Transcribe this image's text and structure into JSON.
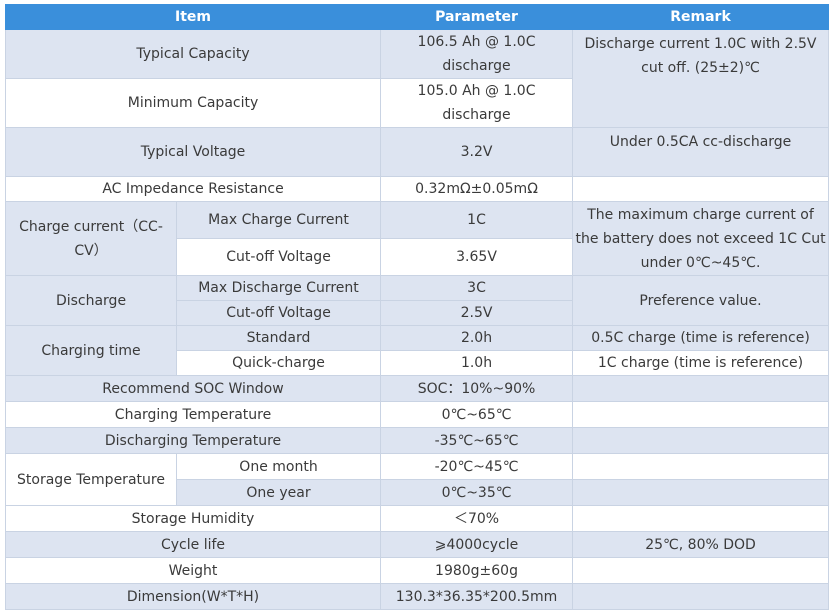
{
  "header": {
    "item": "Item",
    "parameter": "Parameter",
    "remark": "Remark"
  },
  "rows": {
    "typical_capacity": {
      "item": "Typical Capacity",
      "value": "106.5 Ah @ 1.0C discharge"
    },
    "capacity_remark": "Discharge current 1.0C with 2.5V cut off. (25±2)℃",
    "minimum_capacity": {
      "item": "Minimum Capacity",
      "value": "105.0 Ah @ 1.0C discharge"
    },
    "typical_voltage": {
      "item": "Typical Voltage",
      "value": "3.2V",
      "remark": "Under 0.5CA cc-discharge"
    },
    "ac_impedance": {
      "item": "AC Impedance Resistance",
      "value": "0.32mΩ±0.05mΩ",
      "remark": ""
    },
    "charge_current": {
      "item": "Charge current（CC-CV）",
      "max_label": "Max Charge Current",
      "max_value": "1C",
      "cutoff_label": "Cut-off Voltage",
      "cutoff_value": "3.65V",
      "remark": "The maximum charge current of the battery does not exceed 1C Cut under 0℃~45℃."
    },
    "discharge": {
      "item": "Discharge",
      "max_label": "Max Discharge Current",
      "max_value": "3C",
      "cutoff_label": "Cut-off Voltage",
      "cutoff_value": "2.5V",
      "remark": "Preference value."
    },
    "charging_time": {
      "item": "Charging time",
      "standard_label": "Standard",
      "standard_value": "2.0h",
      "standard_remark": "0.5C charge (time is reference)",
      "quick_label": "Quick-charge",
      "quick_value": "1.0h",
      "quick_remark": "1C charge (time is reference)"
    },
    "soc_window": {
      "item": "Recommend SOC Window",
      "value": "SOC：10%~90%",
      "remark": ""
    },
    "charging_temp": {
      "item": "Charging Temperature",
      "value": "0℃~65℃",
      "remark": ""
    },
    "discharging_temp": {
      "item": "Discharging Temperature",
      "value": "-35℃~65℃",
      "remark": ""
    },
    "storage_temp": {
      "item": "Storage Temperature",
      "month_label": "One month",
      "month_value": "-20℃~45℃",
      "year_label": "One year",
      "year_value": "0℃~35℃",
      "remark_month": "",
      "remark_year": ""
    },
    "storage_humidity": {
      "item": "Storage Humidity",
      "value": "＜70%",
      "remark": ""
    },
    "cycle_life": {
      "item": "Cycle life",
      "value": "⩾4000cycle",
      "remark": "25℃, 80% DOD"
    },
    "weight": {
      "item": "Weight",
      "value": "1980g±60g",
      "remark": ""
    },
    "dimension": {
      "item": "Dimension(W*T*H)",
      "value": "130.3*36.35*200.5mm",
      "remark": ""
    }
  }
}
